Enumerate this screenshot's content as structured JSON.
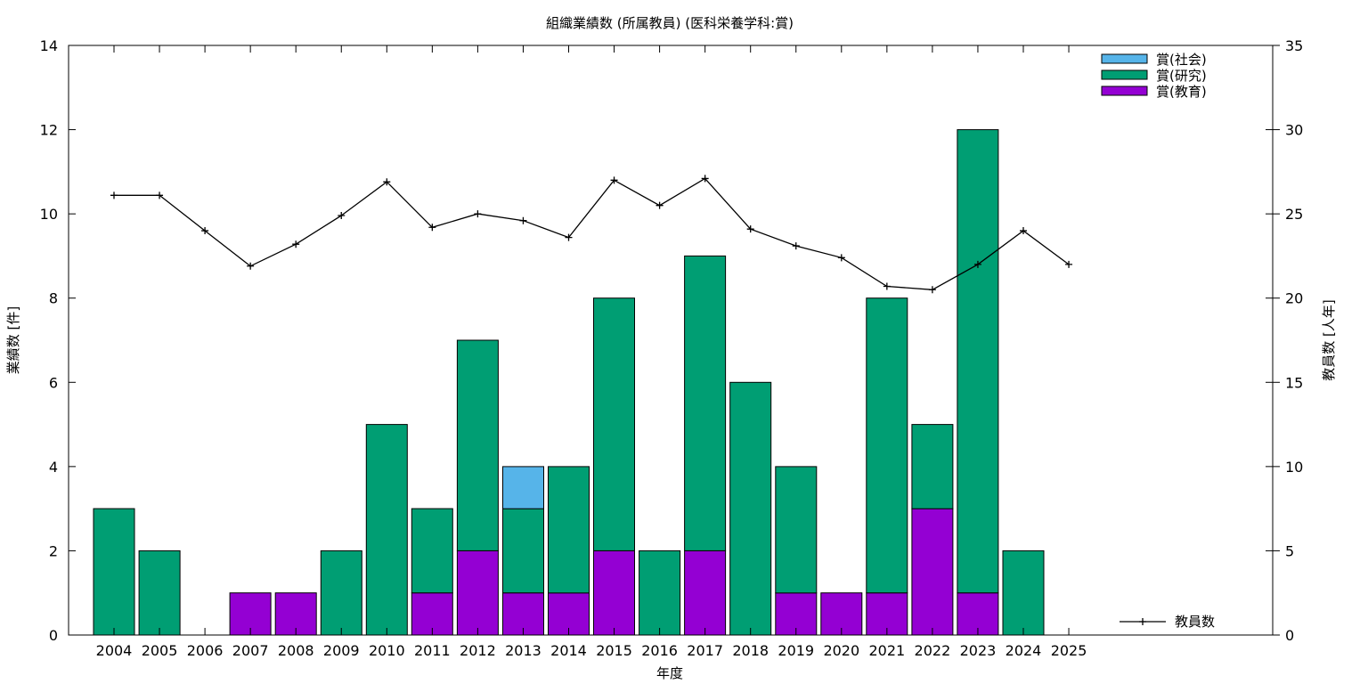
{
  "chart_data": {
    "type": "bar",
    "title": "組織業績数 (所属教員) (医科栄養学科:賞)",
    "xlabel": "年度",
    "ylabel": "業績数 [件]",
    "y2label": "教員数 [人年]",
    "categories": [
      "2004",
      "2005",
      "2006",
      "2007",
      "2008",
      "2009",
      "2010",
      "2011",
      "2012",
      "2013",
      "2014",
      "2015",
      "2016",
      "2017",
      "2018",
      "2019",
      "2020",
      "2021",
      "2022",
      "2023",
      "2024",
      "2025"
    ],
    "ylim": [
      0,
      14
    ],
    "y2lim": [
      0,
      35
    ],
    "y_ticks": [
      0,
      2,
      4,
      6,
      8,
      10,
      12,
      14
    ],
    "y2_ticks": [
      0,
      5,
      10,
      15,
      20,
      25,
      30,
      35
    ],
    "stacked": true,
    "series": [
      {
        "name": "賞(教育)",
        "color": "#9400d3",
        "values": [
          0,
          0,
          0,
          1,
          1,
          0,
          0,
          1,
          2,
          1,
          1,
          2,
          0,
          2,
          0,
          1,
          1,
          1,
          3,
          1,
          0,
          0
        ]
      },
      {
        "name": "賞(研究)",
        "color": "#009e73",
        "values": [
          3,
          2,
          0,
          0,
          0,
          2,
          5,
          2,
          5,
          2,
          3,
          6,
          2,
          7,
          6,
          3,
          0,
          7,
          2,
          11,
          2,
          0
        ]
      },
      {
        "name": "賞(社会)",
        "color": "#56b4e9",
        "values": [
          0,
          0,
          0,
          0,
          0,
          0,
          0,
          0,
          0,
          1,
          0,
          0,
          0,
          0,
          0,
          0,
          0,
          0,
          0,
          0,
          0,
          0
        ]
      }
    ],
    "line_series": {
      "name": "教員数",
      "axis": "y2",
      "color": "#000000",
      "values": [
        26.1,
        26.1,
        24.0,
        21.9,
        23.2,
        24.9,
        26.9,
        24.2,
        25.0,
        24.6,
        23.6,
        27.0,
        25.5,
        27.1,
        24.1,
        23.1,
        22.4,
        20.7,
        20.5,
        22.0,
        24.0,
        22.0
      ]
    },
    "legend_placement": "top-right",
    "line_legend_placement": "bottom-right",
    "grid": false
  }
}
